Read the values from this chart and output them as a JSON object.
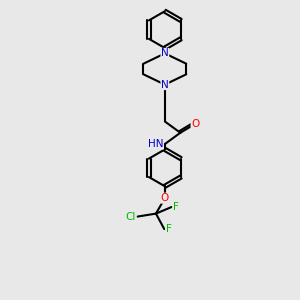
{
  "background_color": "#e8e8e8",
  "bond_color": "#000000",
  "bond_width": 1.5,
  "atom_colors": {
    "N": "#0000cc",
    "O": "#ff0000",
    "F": "#00bb00",
    "Cl": "#00bb00",
    "H": "#444444",
    "C": "#000000"
  },
  "font_size": 7.5,
  "fig_width": 3.0,
  "fig_height": 3.0,
  "dpi": 100
}
